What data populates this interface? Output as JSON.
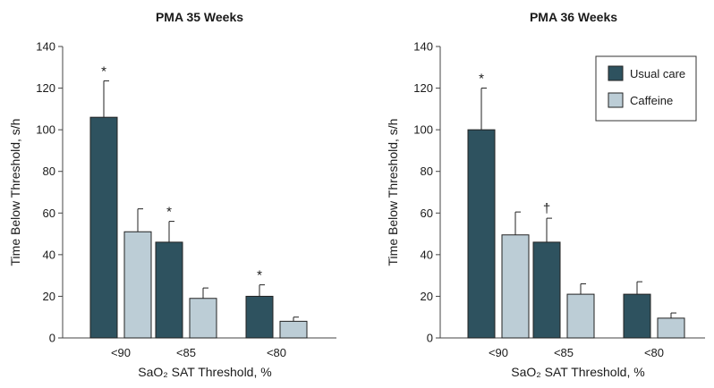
{
  "colors": {
    "usual_care": "#2e525f",
    "caffeine": "#bccdd6",
    "axis": "#444444",
    "text": "#1a1a1a"
  },
  "legend": {
    "entries": [
      "Usual care",
      "Caffeine"
    ],
    "placement": "top-right of right panel"
  },
  "chart_data": [
    {
      "type": "bar",
      "title": "PMA 35 Weeks",
      "xlabel": "SaO₂ SAT Threshold, %",
      "ylabel": "Time Below Threshold, s/h",
      "ylim": [
        0,
        140
      ],
      "yticks": [
        "0",
        "20",
        "40",
        "60",
        "80",
        "100",
        "120",
        "140"
      ],
      "categories": [
        "<90",
        "<85",
        "<80"
      ],
      "series": [
        {
          "name": "Usual care",
          "values": [
            106,
            46,
            20
          ],
          "errors": [
            17.5,
            10,
            5.5
          ],
          "annotations": [
            "*",
            "*",
            "*"
          ]
        },
        {
          "name": "Caffeine",
          "values": [
            51,
            19,
            8
          ],
          "errors": [
            11,
            5,
            2
          ],
          "annotations": [
            "",
            "",
            ""
          ]
        }
      ]
    },
    {
      "type": "bar",
      "title": "PMA 36 Weeks",
      "xlabel": "SaO₂ SAT Threshold, %",
      "ylabel": "Time Below Threshold, s/h",
      "ylim": [
        0,
        140
      ],
      "yticks": [
        "0",
        "20",
        "40",
        "60",
        "80",
        "100",
        "120",
        "140"
      ],
      "categories": [
        "<90",
        "<85",
        "<80"
      ],
      "series": [
        {
          "name": "Usual care",
          "values": [
            100,
            46,
            21
          ],
          "errors": [
            20,
            11.5,
            6
          ],
          "annotations": [
            "*",
            "†",
            ""
          ]
        },
        {
          "name": "Caffeine",
          "values": [
            49.5,
            21,
            9.5
          ],
          "errors": [
            11,
            5,
            2.5
          ],
          "annotations": [
            "",
            "",
            ""
          ]
        }
      ]
    }
  ]
}
